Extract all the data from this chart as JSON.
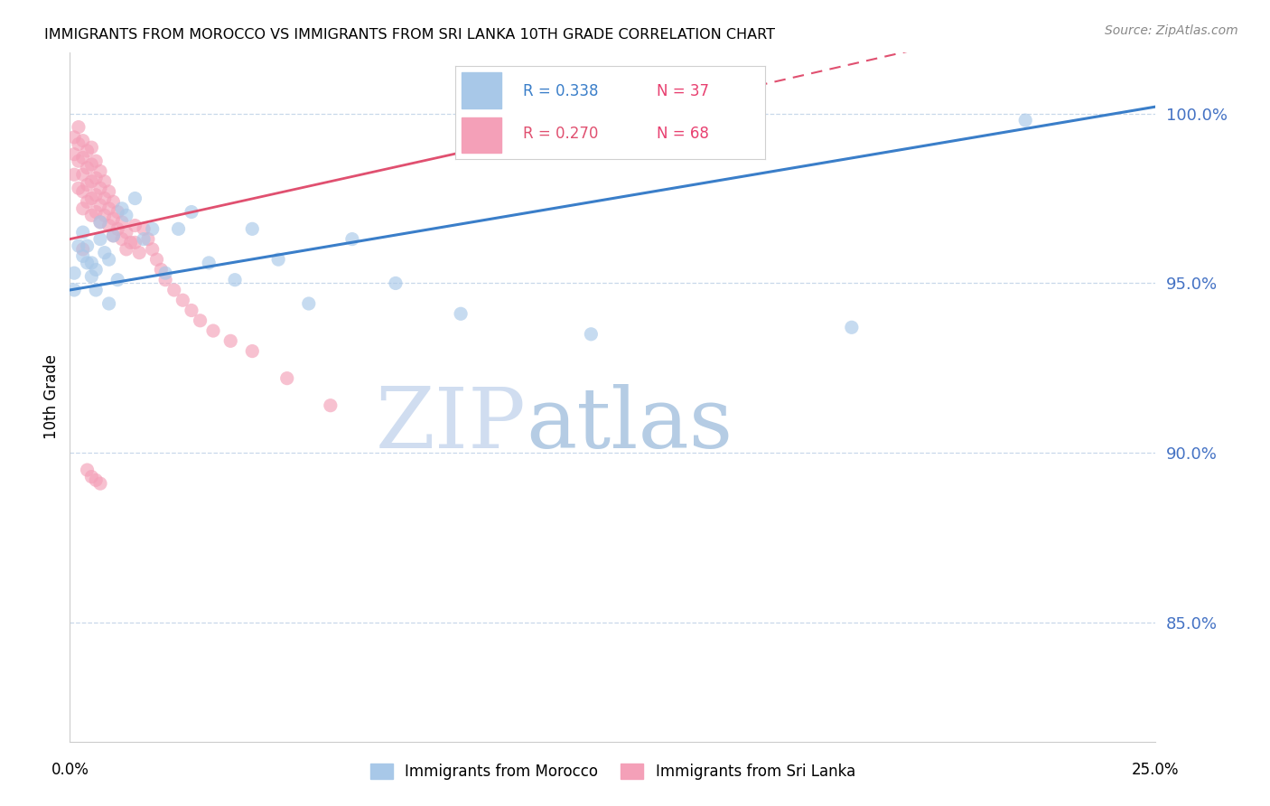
{
  "title": "IMMIGRANTS FROM MOROCCO VS IMMIGRANTS FROM SRI LANKA 10TH GRADE CORRELATION CHART",
  "source": "Source: ZipAtlas.com",
  "ylabel": "10th Grade",
  "yticks": [
    0.85,
    0.9,
    0.95,
    1.0
  ],
  "ytick_labels": [
    "85.0%",
    "90.0%",
    "95.0%",
    "100.0%"
  ],
  "xlim": [
    0.0,
    0.25
  ],
  "ylim": [
    0.815,
    1.018
  ],
  "morocco_color": "#A8C8E8",
  "srilanka_color": "#F4A0B8",
  "morocco_line_color": "#3A7EC9",
  "srilanka_line_color": "#E05070",
  "grid_color": "#C8D8EA",
  "watermark_zip": "ZIP",
  "watermark_atlas": "atlas",
  "watermark_color_zip": "#C8DCF0",
  "watermark_color_atlas": "#A0C0E0",
  "legend_label_morocco": "Immigrants from Morocco",
  "legend_label_srilanka": "Immigrants from Sri Lanka",
  "morocco_x": [
    0.001,
    0.001,
    0.002,
    0.003,
    0.003,
    0.004,
    0.005,
    0.005,
    0.006,
    0.007,
    0.007,
    0.008,
    0.009,
    0.01,
    0.011,
    0.012,
    0.013,
    0.015,
    0.017,
    0.019,
    0.022,
    0.025,
    0.028,
    0.032,
    0.038,
    0.042,
    0.048,
    0.055,
    0.065,
    0.075,
    0.09,
    0.12,
    0.18,
    0.22,
    0.004,
    0.006,
    0.009
  ],
  "morocco_y": [
    0.953,
    0.948,
    0.961,
    0.958,
    0.965,
    0.961,
    0.956,
    0.952,
    0.954,
    0.968,
    0.963,
    0.959,
    0.957,
    0.964,
    0.951,
    0.972,
    0.97,
    0.975,
    0.963,
    0.966,
    0.953,
    0.966,
    0.971,
    0.956,
    0.951,
    0.966,
    0.957,
    0.944,
    0.963,
    0.95,
    0.941,
    0.935,
    0.937,
    0.998,
    0.956,
    0.948,
    0.944
  ],
  "srilanka_x": [
    0.001,
    0.001,
    0.001,
    0.002,
    0.002,
    0.002,
    0.002,
    0.003,
    0.003,
    0.003,
    0.003,
    0.003,
    0.004,
    0.004,
    0.004,
    0.004,
    0.005,
    0.005,
    0.005,
    0.005,
    0.005,
    0.006,
    0.006,
    0.006,
    0.006,
    0.007,
    0.007,
    0.007,
    0.007,
    0.008,
    0.008,
    0.008,
    0.009,
    0.009,
    0.009,
    0.01,
    0.01,
    0.01,
    0.011,
    0.011,
    0.012,
    0.012,
    0.013,
    0.013,
    0.014,
    0.015,
    0.015,
    0.016,
    0.017,
    0.018,
    0.019,
    0.02,
    0.021,
    0.022,
    0.024,
    0.026,
    0.028,
    0.03,
    0.033,
    0.037,
    0.042,
    0.05,
    0.06,
    0.003,
    0.004,
    0.005,
    0.006,
    0.007
  ],
  "srilanka_y": [
    0.993,
    0.988,
    0.982,
    0.996,
    0.991,
    0.986,
    0.978,
    0.992,
    0.987,
    0.982,
    0.977,
    0.972,
    0.989,
    0.984,
    0.979,
    0.974,
    0.99,
    0.985,
    0.98,
    0.975,
    0.97,
    0.986,
    0.981,
    0.976,
    0.971,
    0.983,
    0.978,
    0.973,
    0.968,
    0.98,
    0.975,
    0.97,
    0.977,
    0.972,
    0.967,
    0.974,
    0.969,
    0.964,
    0.971,
    0.966,
    0.968,
    0.963,
    0.965,
    0.96,
    0.962,
    0.967,
    0.962,
    0.959,
    0.966,
    0.963,
    0.96,
    0.957,
    0.954,
    0.951,
    0.948,
    0.945,
    0.942,
    0.939,
    0.936,
    0.933,
    0.93,
    0.922,
    0.914,
    0.96,
    0.895,
    0.893,
    0.892,
    0.891
  ],
  "morocco_line_x": [
    0.0,
    0.25
  ],
  "morocco_line_y": [
    0.948,
    1.002
  ],
  "srilanka_line_x": [
    0.0,
    0.12
  ],
  "srilanka_line_y": [
    0.963,
    0.997
  ]
}
